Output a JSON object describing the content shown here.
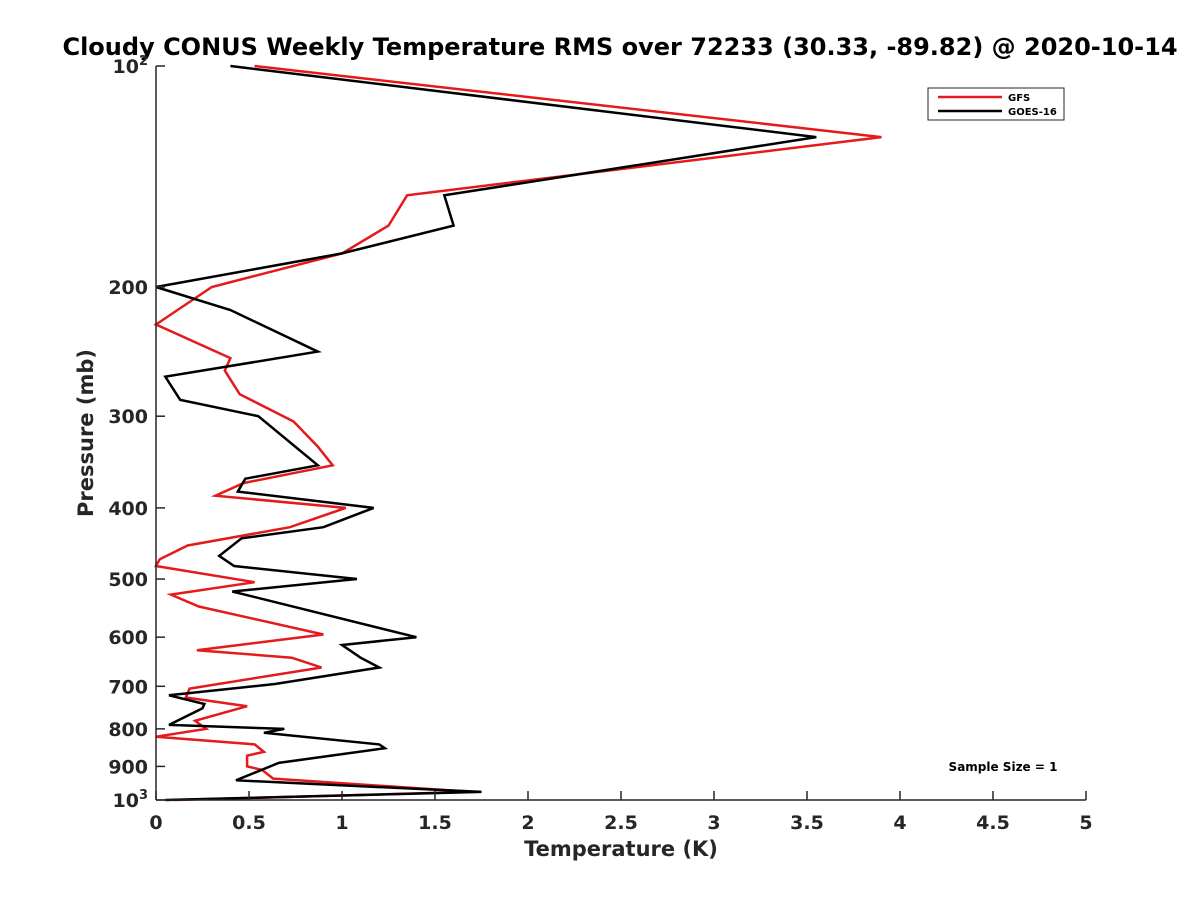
{
  "chart_data": {
    "type": "line",
    "title": "Cloudy CONUS Weekly Temperature RMS over 72233 (30.33, -89.82) @ 2020-10-14",
    "xlabel": "Temperature (K)",
    "ylabel": "Pressure (mb)",
    "xlim": [
      0,
      5
    ],
    "ylim": [
      100,
      1000
    ],
    "yscale": "log",
    "y_reversed": true,
    "grid": false,
    "legend_position": "top-right",
    "x_ticks": [
      {
        "value": 0,
        "label": "0"
      },
      {
        "value": 0.5,
        "label": "0.5"
      },
      {
        "value": 1,
        "label": "1"
      },
      {
        "value": 1.5,
        "label": "1.5"
      },
      {
        "value": 2,
        "label": "2"
      },
      {
        "value": 2.5,
        "label": "2.5"
      },
      {
        "value": 3,
        "label": "3"
      },
      {
        "value": 3.5,
        "label": "3.5"
      },
      {
        "value": 4,
        "label": "4"
      },
      {
        "value": 4.5,
        "label": "4.5"
      },
      {
        "value": 5,
        "label": "5"
      }
    ],
    "y_ticks": [
      {
        "value": 100,
        "base": "10",
        "exp": "2"
      },
      {
        "value": 200,
        "label": "200"
      },
      {
        "value": 300,
        "label": "300"
      },
      {
        "value": 400,
        "label": "400"
      },
      {
        "value": 500,
        "label": "500"
      },
      {
        "value": 600,
        "label": "600"
      },
      {
        "value": 700,
        "label": "700"
      },
      {
        "value": 800,
        "label": "800"
      },
      {
        "value": 900,
        "label": "900"
      },
      {
        "value": 1000,
        "base": "10",
        "exp": "3"
      }
    ],
    "annotation": "Sample Size = 1",
    "series": [
      {
        "name": "GFS",
        "color": "#e41a1c",
        "points": [
          [
            0.53,
            100
          ],
          [
            3.9,
            125
          ],
          [
            1.35,
            150
          ],
          [
            1.25,
            165
          ],
          [
            1.0,
            180
          ],
          [
            0.3,
            200
          ],
          [
            0.0,
            225
          ],
          [
            0.4,
            250
          ],
          [
            0.37,
            260
          ],
          [
            0.45,
            280
          ],
          [
            0.74,
            305
          ],
          [
            0.87,
            330
          ],
          [
            0.95,
            350
          ],
          [
            0.47,
            370
          ],
          [
            0.32,
            385
          ],
          [
            1.02,
            400
          ],
          [
            0.72,
            425
          ],
          [
            0.17,
            450
          ],
          [
            0.02,
            470
          ],
          [
            0.0,
            480
          ],
          [
            0.53,
            505
          ],
          [
            0.08,
            525
          ],
          [
            0.23,
            545
          ],
          [
            0.9,
            595
          ],
          [
            0.22,
            625
          ],
          [
            0.73,
            640
          ],
          [
            0.89,
            660
          ],
          [
            0.18,
            705
          ],
          [
            0.16,
            725
          ],
          [
            0.49,
            745
          ],
          [
            0.21,
            780
          ],
          [
            0.27,
            800
          ],
          [
            0.0,
            820
          ],
          [
            0.53,
            840
          ],
          [
            0.58,
            860
          ],
          [
            0.49,
            870
          ],
          [
            0.49,
            900
          ],
          [
            0.57,
            910
          ],
          [
            0.63,
            935
          ],
          [
            1.7,
            975
          ],
          [
            0.1,
            1000
          ]
        ]
      },
      {
        "name": "GOES-16",
        "color": "#000000",
        "points": [
          [
            0.4,
            100
          ],
          [
            3.55,
            125
          ],
          [
            1.55,
            150
          ],
          [
            1.6,
            165
          ],
          [
            1.0,
            180
          ],
          [
            0.0,
            200
          ],
          [
            0.4,
            215
          ],
          [
            0.87,
            245
          ],
          [
            0.05,
            265
          ],
          [
            0.13,
            285
          ],
          [
            0.55,
            300
          ],
          [
            0.87,
            350
          ],
          [
            0.48,
            365
          ],
          [
            0.44,
            380
          ],
          [
            1.17,
            400
          ],
          [
            0.9,
            425
          ],
          [
            0.46,
            440
          ],
          [
            0.34,
            465
          ],
          [
            0.42,
            480
          ],
          [
            1.08,
            500
          ],
          [
            0.41,
            520
          ],
          [
            1.4,
            600
          ],
          [
            1.0,
            615
          ],
          [
            1.1,
            640
          ],
          [
            1.2,
            660
          ],
          [
            0.64,
            695
          ],
          [
            0.07,
            720
          ],
          [
            0.26,
            740
          ],
          [
            0.25,
            750
          ],
          [
            0.07,
            790
          ],
          [
            0.69,
            800
          ],
          [
            0.58,
            810
          ],
          [
            1.2,
            840
          ],
          [
            1.23,
            850
          ],
          [
            0.66,
            890
          ],
          [
            0.43,
            940
          ],
          [
            1.75,
            975
          ],
          [
            0.05,
            1000
          ]
        ]
      }
    ]
  }
}
